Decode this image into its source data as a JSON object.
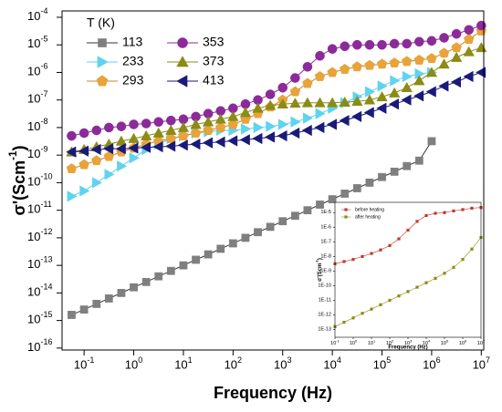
{
  "chart_data": [
    {
      "type": "line",
      "log_x": true,
      "log_y": true,
      "legend": "upper left",
      "x_label": "Frequency (Hz)",
      "y_label": "σ'(Scm",
      "y_label_sup": "-1",
      "y_label_end": ")",
      "legend_title": "T (K)",
      "xlim": [
        0.036,
        11200000
      ],
      "ylim": [
        8.5e-17,
        0.00017
      ],
      "xticks": [
        {
          "value": 0.1,
          "label": "10",
          "sup": "-1"
        },
        {
          "value": 1,
          "label": "10",
          "sup": "0"
        },
        {
          "value": 10,
          "label": "10",
          "sup": "1"
        },
        {
          "value": 100,
          "label": "10",
          "sup": "2"
        },
        {
          "value": 1000,
          "label": "10",
          "sup": "3"
        },
        {
          "value": 10000,
          "label": "10",
          "sup": "4"
        },
        {
          "value": 100000,
          "label": "10",
          "sup": "5"
        },
        {
          "value": 1000000,
          "label": "10",
          "sup": "6"
        },
        {
          "value": 10000000,
          "label": "10",
          "sup": "7"
        }
      ],
      "yticks": [
        {
          "value": 1e-16,
          "label": "10",
          "sup": "-16"
        },
        {
          "value": 1e-15,
          "label": "10",
          "sup": "-15"
        },
        {
          "value": 1e-14,
          "label": "10",
          "sup": "-14"
        },
        {
          "value": 1e-13,
          "label": "10",
          "sup": "-13"
        },
        {
          "value": 1e-12,
          "label": "10",
          "sup": "-12"
        },
        {
          "value": 1e-11,
          "label": "10",
          "sup": "-11"
        },
        {
          "value": 1e-10,
          "label": "10",
          "sup": "-10"
        },
        {
          "value": 1e-09,
          "label": "10",
          "sup": "-9"
        },
        {
          "value": 1e-08,
          "label": "10",
          "sup": "-8"
        },
        {
          "value": 1e-07,
          "label": "10",
          "sup": "-7"
        },
        {
          "value": 1e-06,
          "label": "10",
          "sup": "-6"
        },
        {
          "value": 1e-05,
          "label": "10",
          "sup": "-5"
        },
        {
          "value": 0.0001,
          "label": "10",
          "sup": "-4"
        }
      ],
      "x": [
        0.056,
        0.1,
        0.178,
        0.316,
        0.562,
        1,
        1.78,
        3.16,
        5.62,
        10,
        17.8,
        31.6,
        56.2,
        100,
        178,
        316,
        562,
        1000,
        1780,
        3160,
        5620,
        10000,
        17800,
        31600,
        56200,
        100000,
        178000,
        316000,
        562000,
        1000000,
        1780000,
        3160000,
        5620000,
        10000000
      ],
      "series": [
        {
          "name": "113",
          "color": "#7f7f7f",
          "line_color": "#333333",
          "marker": "square",
          "values": [
            1.6e-15,
            2.5e-15,
            4e-15,
            6.3e-15,
            1e-14,
            1.6e-14,
            2.5e-14,
            4e-14,
            6.3e-14,
            1e-13,
            1.6e-13,
            2.5e-13,
            4e-13,
            6.3e-13,
            1e-12,
            1.6e-12,
            2.5e-12,
            4e-12,
            6.3e-12,
            1e-11,
            1.6e-11,
            2.5e-11,
            4e-11,
            6.3e-11,
            1e-10,
            1.6e-10,
            2.5e-10,
            4e-10,
            6.3e-10,
            3.2e-09,
            null,
            null,
            null,
            null
          ]
        },
        {
          "name": "233",
          "color": "#5fd3ef",
          "line_color": "#5fd3ef",
          "marker": "triangle-right",
          "values": [
            3.2e-11,
            5e-11,
            1e-10,
            2e-10,
            4e-10,
            7.9e-10,
            1.6e-09,
            2.5e-09,
            4e-09,
            5e-09,
            6.3e-09,
            7.1e-09,
            7.9e-09,
            7.9e-09,
            8.9e-09,
            1e-08,
            1.1e-08,
            1.3e-08,
            1.6e-08,
            2.2e-08,
            3.2e-08,
            5e-08,
            7.9e-08,
            1.3e-07,
            2e-07,
            3.2e-07,
            5e-07,
            7.1e-07,
            8.9e-07,
            1e-06,
            null,
            null,
            null,
            null
          ]
        },
        {
          "name": "293",
          "color": "#e8a33a",
          "line_color": "#c98424",
          "marker": "pentagon",
          "values": [
            3.2e-10,
            4.5e-10,
            6.3e-10,
            8.9e-10,
            1.3e-09,
            1.8e-09,
            2.5e-09,
            3.2e-09,
            4e-09,
            5e-09,
            6.3e-09,
            7.9e-09,
            1e-08,
            1.3e-08,
            2e-08,
            3.2e-08,
            5.6e-08,
            1e-07,
            2e-07,
            4e-07,
            7.1e-07,
            1e-06,
            1.3e-06,
            1.6e-06,
            1.8e-06,
            2e-06,
            2.2e-06,
            2.5e-06,
            2.8e-06,
            3.2e-06,
            5e-06,
            7.9e-06,
            1.6e-05,
            3.2e-05
          ]
        },
        {
          "name": "353",
          "color": "#8c2a9a",
          "line_color": "#8c2a9a",
          "marker": "circle",
          "values": [
            5e-09,
            6.3e-09,
            7.9e-09,
            1e-08,
            1.1e-08,
            1.3e-08,
            1.4e-08,
            1.6e-08,
            1.8e-08,
            2e-08,
            2.5e-08,
            3.2e-08,
            4e-08,
            5e-08,
            7.1e-08,
            1e-07,
            1.6e-07,
            2.8e-07,
            6.3e-07,
            1.6e-06,
            4e-06,
            7.1e-06,
            8.9e-06,
            1e-05,
            1e-05,
            1e-05,
            1.1e-05,
            1.1e-05,
            1.3e-05,
            1.4e-05,
            1.8e-05,
            2.5e-05,
            3.5e-05,
            5e-05
          ]
        },
        {
          "name": "373",
          "color": "#8b8b16",
          "line_color": "#8b8b16",
          "marker": "triangle-up",
          "values": [
            1.3e-09,
            1.6e-09,
            2e-09,
            2.5e-09,
            3.2e-09,
            4e-09,
            5e-09,
            6.3e-09,
            7.9e-09,
            1e-08,
            1.3e-08,
            1.6e-08,
            2e-08,
            2.5e-08,
            3.5e-08,
            5e-08,
            6.3e-08,
            7.1e-08,
            7.6e-08,
            7.9e-08,
            7.9e-08,
            7.9e-08,
            8.3e-08,
            8.9e-08,
            1e-07,
            1.3e-07,
            1.8e-07,
            2.8e-07,
            5e-07,
            1e-06,
            2e-06,
            3.5e-06,
            5.6e-06,
            7.9e-06
          ]
        },
        {
          "name": "413",
          "color": "#1a1a7a",
          "line_color": "#1a1a7a",
          "marker": "triangle-left",
          "values": [
            1.3e-09,
            1.4e-09,
            1.6e-09,
            1.7e-09,
            1.7e-09,
            1.8e-09,
            1.9e-09,
            2e-09,
            2.1e-09,
            2.3e-09,
            2.5e-09,
            2.8e-09,
            3e-09,
            3.3e-09,
            3.6e-09,
            4e-09,
            4.5e-09,
            5e-09,
            6.3e-09,
            7.9e-09,
            1e-08,
            1.3e-08,
            1.8e-08,
            2.5e-08,
            3.5e-08,
            5e-08,
            7.1e-08,
            1e-07,
            1.4e-07,
            2e-07,
            3.2e-07,
            4.5e-07,
            7.1e-07,
            1e-06
          ]
        }
      ]
    },
    {
      "type": "line",
      "log_x": true,
      "log_y": true,
      "legend": "upper left",
      "x_label": "Frequency (Hz)",
      "y_label": "σ'(Scm",
      "y_label_sup": "-1",
      "y_label_end": ")",
      "xlim": [
        0.1,
        10000000
      ],
      "ylim": [
        3e-14,
        5e-05
      ],
      "xticks": [
        {
          "value": 0.1,
          "label": "10",
          "sup": "-1"
        },
        {
          "value": 1,
          "label": "10",
          "sup": "0"
        },
        {
          "value": 10,
          "label": "10",
          "sup": "1"
        },
        {
          "value": 100,
          "label": "10",
          "sup": "2"
        },
        {
          "value": 1000,
          "label": "10",
          "sup": "3"
        },
        {
          "value": 10000,
          "label": "10",
          "sup": "4"
        },
        {
          "value": 100000,
          "label": "10",
          "sup": "5"
        },
        {
          "value": 1000000,
          "label": "10",
          "sup": "6"
        },
        {
          "value": 10000000,
          "label": "10",
          "sup": "7"
        }
      ],
      "yticks": [
        {
          "value": 1e-13,
          "label": "1E-13"
        },
        {
          "value": 1e-12,
          "label": "1E-12"
        },
        {
          "value": 1e-11,
          "label": "1E-11"
        },
        {
          "value": 1e-10,
          "label": "1E-10"
        },
        {
          "value": 1e-09,
          "label": "1E-9"
        },
        {
          "value": 1e-08,
          "label": "1E-8"
        },
        {
          "value": 1e-07,
          "label": "1E-7"
        },
        {
          "value": 1e-06,
          "label": "1E-6"
        },
        {
          "value": 1e-05,
          "label": "1E-5"
        }
      ],
      "x": [
        0.1,
        0.316,
        1,
        3.16,
        10,
        31.6,
        100,
        316,
        1000,
        3160,
        10000,
        31600,
        100000,
        316000,
        1000000,
        3160000,
        10000000
      ],
      "series": [
        {
          "name": "before heating",
          "color": "#c0392b",
          "line_color": "#c0392b",
          "marker": "square",
          "values": [
            3.2e-09,
            4.5e-09,
            6.3e-09,
            1e-08,
            1.6e-08,
            2.8e-08,
            5.6e-08,
            1.6e-07,
            6.3e-07,
            2.5e-06,
            6.3e-06,
            8.9e-06,
            1e-05,
            1.3e-05,
            1.6e-05,
            2e-05,
            2.2e-05
          ]
        },
        {
          "name": "after heating",
          "color": "#8b8b16",
          "line_color": "#8b8b16",
          "marker": "square",
          "values": [
            1.6e-13,
            3.2e-13,
            6.3e-13,
            1.3e-12,
            2.5e-12,
            5e-12,
            1e-11,
            2e-11,
            4e-11,
            7.9e-11,
            1.6e-10,
            3.2e-10,
            7.1e-10,
            1.8e-09,
            6.3e-09,
            3.2e-08,
            2e-07
          ]
        }
      ]
    }
  ]
}
